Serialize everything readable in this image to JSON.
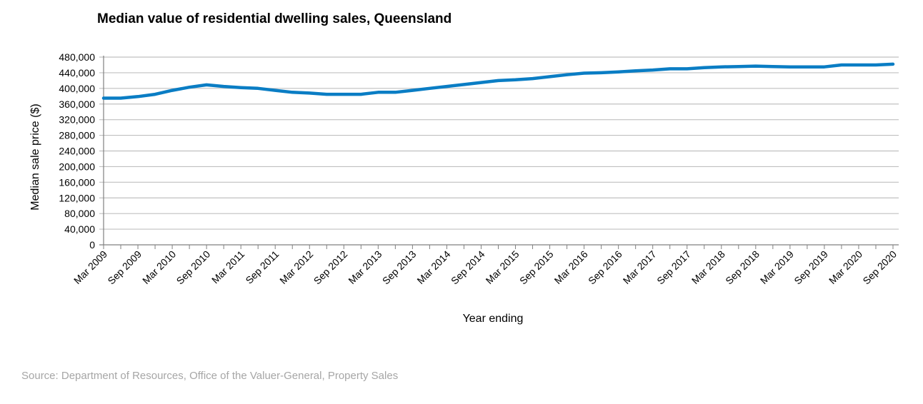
{
  "chart_data": {
    "type": "line",
    "title": "Median value of residential dwelling sales, Queensland",
    "xlabel": "Year ending",
    "ylabel": "Median sale price ($)",
    "ylim": [
      0,
      480000
    ],
    "yticks": [
      "0",
      "40,000",
      "80,000",
      "120,000",
      "160,000",
      "200,000",
      "240,000",
      "280,000",
      "320,000",
      "360,000",
      "400,000",
      "440,000",
      "480,000"
    ],
    "grid": true,
    "x": [
      "Mar 2009",
      "Jun 2009",
      "Sep 2009",
      "Dec 2009",
      "Mar 2010",
      "Jun 2010",
      "Sep 2010",
      "Dec 2010",
      "Mar 2011",
      "Jun 2011",
      "Sep 2011",
      "Dec 2011",
      "Mar 2012",
      "Jun 2012",
      "Sep 2012",
      "Dec 2012",
      "Mar 2013",
      "Jun 2013",
      "Sep 2013",
      "Dec 2013",
      "Mar 2014",
      "Jun 2014",
      "Sep 2014",
      "Dec 2014",
      "Mar 2015",
      "Jun 2015",
      "Sep 2015",
      "Dec 2015",
      "Mar 2016",
      "Jun 2016",
      "Sep 2016",
      "Dec 2016",
      "Mar 2017",
      "Jun 2017",
      "Sep 2017",
      "Dec 2017",
      "Mar 2018",
      "Jun 2018",
      "Sep 2018",
      "Dec 2018",
      "Mar 2019",
      "Jun 2019",
      "Sep 2019",
      "Dec 2019",
      "Mar 2020",
      "Jun 2020",
      "Sep 2020"
    ],
    "xtick_labels": [
      "Mar 2009",
      "Sep 2009",
      "Mar 2010",
      "Sep 2010",
      "Mar 2011",
      "Sep 2011",
      "Mar 2012",
      "Sep 2012",
      "Mar 2013",
      "Sep 2013",
      "Mar 2014",
      "Sep 2014",
      "Mar 2015",
      "Sep 2015",
      "Mar 2016",
      "Sep 2016",
      "Mar 2017",
      "Sep 2017",
      "Mar 2018",
      "Sep 2018",
      "Mar 2019",
      "Sep 2019",
      "Mar 2020",
      "Sep 2020"
    ],
    "series": [
      {
        "values": [
          375000,
          375000,
          379000,
          385000,
          395000,
          403000,
          409000,
          405000,
          402000,
          400000,
          395000,
          390000,
          388000,
          385000,
          385000,
          385000,
          390000,
          390000,
          395000,
          400000,
          405000,
          410000,
          415000,
          420000,
          422000,
          425000,
          430000,
          435000,
          439000,
          440000,
          442000,
          445000,
          447000,
          450000,
          450000,
          453000,
          455000,
          456000,
          457000,
          456000,
          455000,
          455000,
          455000,
          460000,
          460000,
          460000,
          462000
        ],
        "color": "#0a7dc4"
      }
    ]
  },
  "source_note": "Source: Department of Resources, Office of the Valuer-General, Property Sales"
}
